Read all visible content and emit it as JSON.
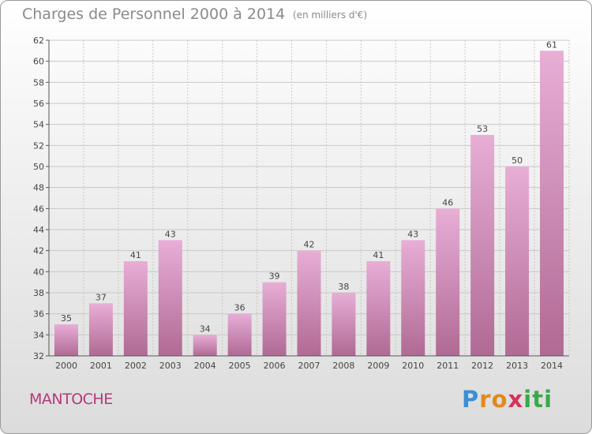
{
  "chart_data": {
    "type": "bar",
    "title": "Charges de Personnel 2000 à 2014",
    "subtitle": "(en milliers d'€)",
    "categories": [
      "2000",
      "2001",
      "2002",
      "2003",
      "2004",
      "2005",
      "2006",
      "2007",
      "2008",
      "2009",
      "2010",
      "2011",
      "2012",
      "2013",
      "2014"
    ],
    "values": [
      35,
      37,
      41,
      43,
      34,
      36,
      39,
      42,
      38,
      41,
      43,
      46,
      53,
      50,
      61
    ],
    "yticks": [
      32,
      34,
      36,
      38,
      40,
      42,
      44,
      46,
      48,
      50,
      52,
      54,
      56,
      58,
      60,
      62
    ],
    "ylim": [
      32,
      62
    ],
    "xlabel": "",
    "ylabel": ""
  },
  "location": "MANTOCHE",
  "brand": {
    "letters": [
      "P",
      "r",
      "o",
      "x",
      "i",
      "t",
      "i"
    ],
    "colors": [
      "#3a8fd6",
      "#e08a1e",
      "#e08a1e",
      "#d6335a",
      "#3aa84a",
      "#3aa84a",
      "#3aa84a"
    ]
  },
  "colors": {
    "bar_top": "#e8aed6",
    "bar_bottom": "#b06a94",
    "grid": "#c8c8c8",
    "axis": "#555555",
    "text": "#8a8a8a",
    "location": "#b23a7a"
  }
}
